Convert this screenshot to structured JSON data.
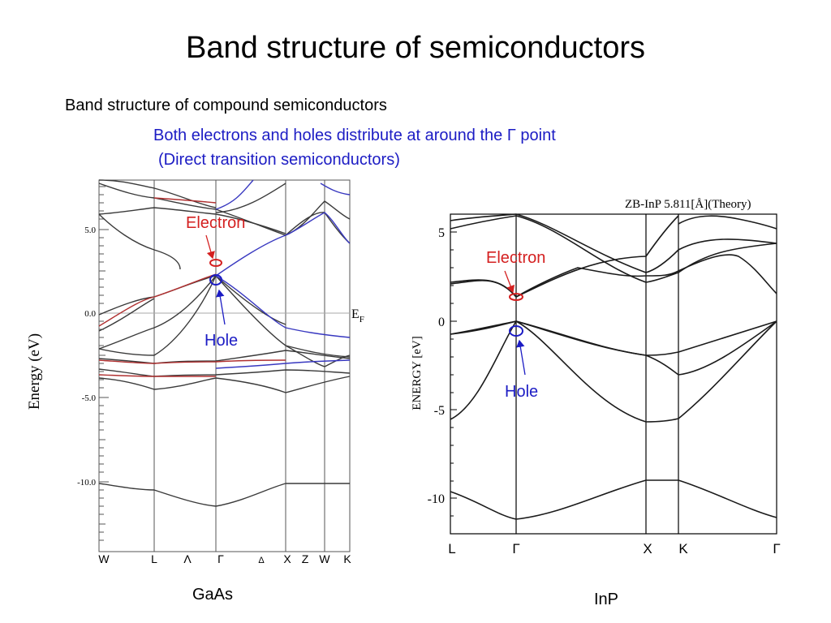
{
  "slide": {
    "title": "Band structure of semiconductors",
    "subtitle": "Band structure of compound semiconductors",
    "note_line1": "Both electrons and holes distribute at around the Γ point",
    "note_line2": "(Direct transition semiconductors)"
  },
  "colors": {
    "note_blue": "#1c1cc4",
    "electron_red": "#d42020",
    "hole_blue": "#1c1cc4",
    "band_dark": "#3a3a3a",
    "band_red": "#b03030",
    "band_blue": "#3838c0"
  },
  "figures": {
    "gaas": {
      "caption": "GaAs",
      "ylabel": "Energy (eV)",
      "ef_label": "E",
      "ef_sub": "F",
      "y_ticks": [
        "5.0",
        "0.0",
        "-5.0",
        "-10.0"
      ],
      "k_labels": [
        "W",
        "L",
        "Λ",
        "Γ",
        "Δ",
        "X",
        "Z",
        "W",
        "K"
      ],
      "electron_label": "Electron",
      "hole_label": "Hole"
    },
    "inp": {
      "caption": "InP",
      "header": "ZB-InP  5.811[Å](Theory)",
      "ylabel": "ENERGY  [eV]",
      "y_ticks": [
        "5",
        "0",
        "-5",
        "-10"
      ],
      "k_labels": [
        "L",
        "Γ",
        "X",
        "K",
        "Γ"
      ],
      "electron_label": "Electron",
      "hole_label": "Hole"
    }
  }
}
